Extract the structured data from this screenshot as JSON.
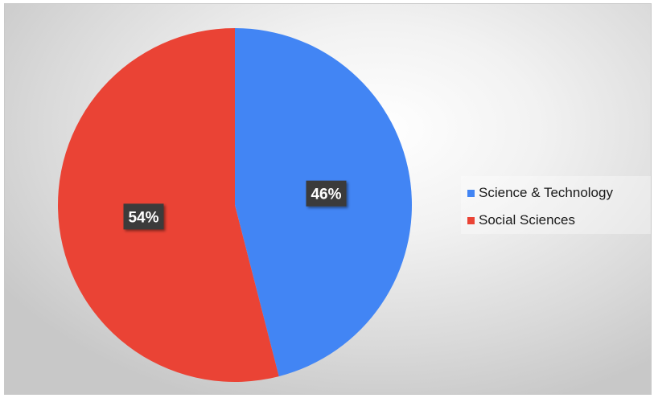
{
  "chart_data": {
    "type": "pie",
    "title": "",
    "categories": [
      "Science & Technology",
      "Social Sciences"
    ],
    "values": [
      46,
      54
    ],
    "data_labels": [
      "46%",
      "54%"
    ],
    "colors": [
      "#4285f4",
      "#ea4335"
    ],
    "legend_position": "right",
    "start_angle": "12 o'clock",
    "direction": "clockwise"
  }
}
